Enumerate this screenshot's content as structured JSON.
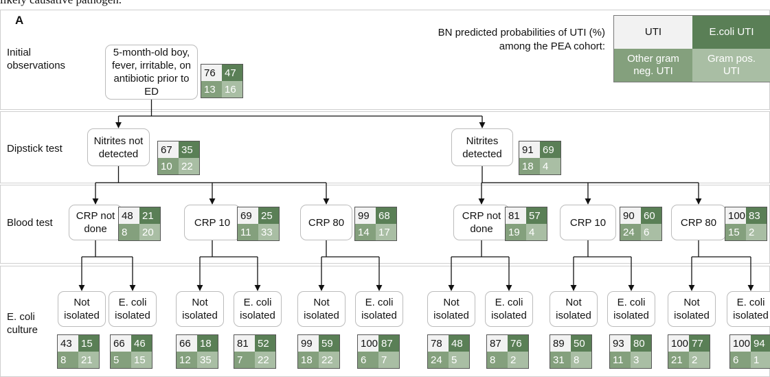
{
  "header_text": "likely causative pathogen.",
  "panel_label": "A",
  "legend": {
    "title": [
      "BN predicted probabilities of UTI (%)",
      "among the PEA cohort:"
    ],
    "cells": [
      "UTI",
      "E.coli UTI",
      "Other gram neg. UTI",
      "Gram pos. UTI"
    ]
  },
  "rows": [
    "Initial observations",
    "Dipstick test",
    "Blood test",
    "E. coli culture"
  ],
  "nodes": [
    {
      "label": "5-month-old boy, fever, irritable, on antibiotic prior to ED",
      "values": [
        "76",
        "47",
        "13",
        "16"
      ]
    },
    {
      "label": "Nitrites not detected",
      "values": [
        "67",
        "35",
        "10",
        "22"
      ]
    },
    {
      "label": "Nitrites detected",
      "values": [
        "91",
        "69",
        "18",
        "4"
      ]
    },
    {
      "label": "CRP not done",
      "values": [
        "48",
        "21",
        "8",
        "20"
      ]
    },
    {
      "label": "CRP 10",
      "values": [
        "69",
        "25",
        "11",
        "33"
      ]
    },
    {
      "label": "CRP 80",
      "values": [
        "99",
        "68",
        "14",
        "17"
      ]
    },
    {
      "label": "CRP not done",
      "values": [
        "81",
        "57",
        "19",
        "4"
      ]
    },
    {
      "label": "CRP 10",
      "values": [
        "90",
        "60",
        "24",
        "6"
      ]
    },
    {
      "label": "CRP 80",
      "values": [
        "100",
        "83",
        "15",
        "2"
      ]
    },
    {
      "label": "Not isolated",
      "values": [
        "43",
        "15",
        "8",
        "21"
      ]
    },
    {
      "label": "E. coli isolated",
      "values": [
        "66",
        "46",
        "5",
        "15"
      ]
    },
    {
      "label": "Not isolated",
      "values": [
        "66",
        "18",
        "12",
        "35"
      ]
    },
    {
      "label": "E. coli isolated",
      "values": [
        "81",
        "52",
        "7",
        "22"
      ]
    },
    {
      "label": "Not isolated",
      "values": [
        "99",
        "59",
        "18",
        "22"
      ]
    },
    {
      "label": "E. coli isolated",
      "values": [
        "100",
        "87",
        "6",
        "7"
      ]
    },
    {
      "label": "Not isolated",
      "values": [
        "78",
        "48",
        "24",
        "5"
      ]
    },
    {
      "label": "E. coli isolated",
      "values": [
        "87",
        "76",
        "8",
        "2"
      ]
    },
    {
      "label": "Not isolated",
      "values": [
        "89",
        "50",
        "31",
        "8"
      ]
    },
    {
      "label": "E. coli isolated",
      "values": [
        "93",
        "80",
        "11",
        "3"
      ]
    },
    {
      "label": "Not isolated",
      "values": [
        "100",
        "77",
        "21",
        "2"
      ]
    },
    {
      "label": "E. coli isolated",
      "values": [
        "100",
        "94",
        "6",
        "1"
      ]
    }
  ]
}
